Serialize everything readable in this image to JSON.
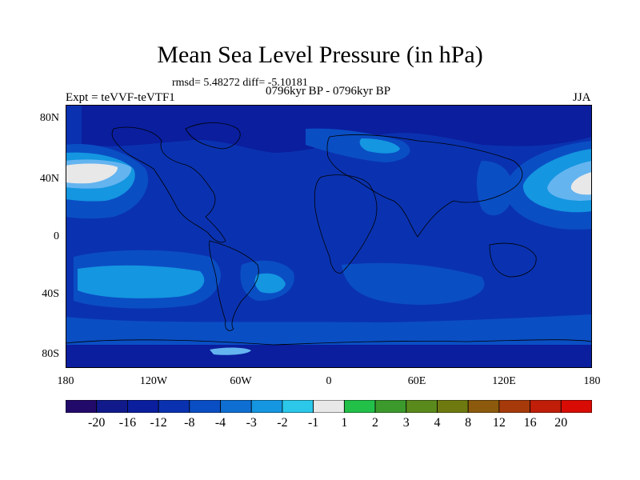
{
  "title": "Mean Sea Level Pressure (in hPa)",
  "stats": "rmsd= 5.48272 diff= -5.10181",
  "period": "0796kyr BP - 0796kyr BP",
  "experiment": "Expt = teVVF-teVTF1",
  "season": "JJA",
  "y_ticks": [
    "80N",
    "40N",
    "0",
    "40S",
    "80S"
  ],
  "x_ticks": [
    "180",
    "120W",
    "60W",
    "0",
    "60E",
    "120E",
    "180"
  ],
  "colorbar": {
    "labels": [
      "-20",
      "-16",
      "-12",
      "-8",
      "-4",
      "-3",
      "-2",
      "-1",
      "1",
      "2",
      "3",
      "4",
      "8",
      "12",
      "16",
      "20"
    ],
    "colors": [
      "#220a6b",
      "#101a8a",
      "#0a1e9e",
      "#0a32b0",
      "#0a4ec4",
      "#0f6ed2",
      "#1496e0",
      "#2cc8ea",
      "#e8e8e8",
      "#22c048",
      "#3c9a2c",
      "#5a8a1c",
      "#6e7a10",
      "#8c5a0c",
      "#a63a0a",
      "#c01e08",
      "#d80c04"
    ]
  },
  "field_colors": {
    "base": "#0a32b0",
    "deep": "#0a1e9e",
    "mid": "#0a4ec4",
    "light": "#1496e0",
    "pale": "#64b4f0",
    "white": "#e8e8e8"
  }
}
